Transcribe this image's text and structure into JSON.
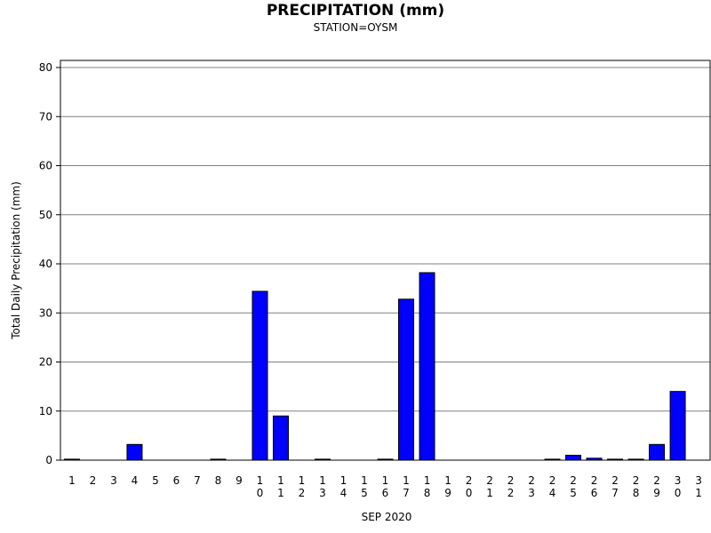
{
  "chart_data": {
    "type": "bar",
    "title": "PRECIPITATION (mm)",
    "subtitle": "STATION=OYSM",
    "xlabel": "SEP 2020",
    "ylabel": "Total Daily Precipitation (mm)",
    "ylim": [
      0,
      80
    ],
    "yticks": [
      0,
      10,
      20,
      30,
      40,
      50,
      60,
      70,
      80
    ],
    "grid": true,
    "bar_color": "#0000ff",
    "categories": [
      "1",
      "2",
      "3",
      "4",
      "5",
      "6",
      "7",
      "8",
      "9",
      "10",
      "11",
      "12",
      "13",
      "14",
      "15",
      "16",
      "17",
      "18",
      "19",
      "20",
      "21",
      "22",
      "23",
      "24",
      "25",
      "26",
      "27",
      "28",
      "29",
      "30",
      "31"
    ],
    "values": [
      0.2,
      0,
      0,
      3.2,
      0,
      0,
      0,
      0.2,
      0,
      34.4,
      9.0,
      0,
      0.2,
      0,
      0,
      0.2,
      32.8,
      38.2,
      0,
      0,
      0,
      0,
      0,
      0.2,
      1.0,
      0.4,
      0.2,
      0.2,
      3.2,
      14.0,
      0
    ]
  }
}
